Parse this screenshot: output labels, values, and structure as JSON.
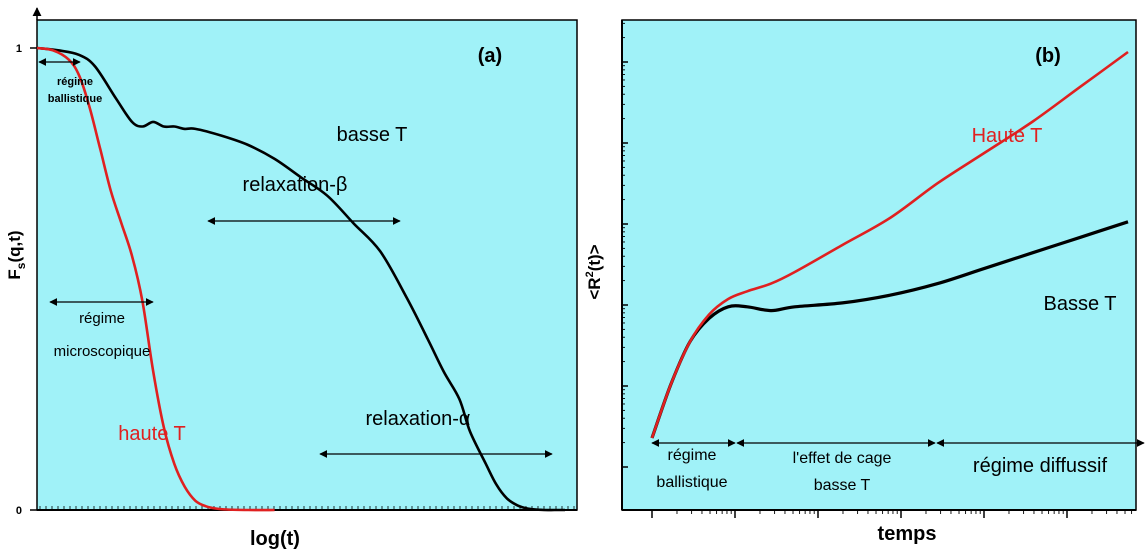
{
  "colors": {
    "panel_bg": "#a0f2f8",
    "low_T": "#000000",
    "high_T": "#e02020",
    "frame": "#000000"
  },
  "chart_data": [
    {
      "type": "line",
      "panel_label": "(a)",
      "xlabel": "log(t)",
      "ylabel": "F",
      "ylabel_sub": "s",
      "ylabel_tail": "(q,t)",
      "y_ticks": [
        "1",
        "0"
      ],
      "ylim": [
        0,
        1
      ],
      "grid": false,
      "series": [
        {
          "name": "basse T",
          "color": "#000000",
          "x": [
            0,
            0.04,
            0.08,
            0.11,
            0.15,
            0.18,
            0.2,
            0.22,
            0.24,
            0.26,
            0.28,
            0.3,
            0.35,
            0.4,
            0.45,
            0.5,
            0.55,
            0.6,
            0.65,
            0.7,
            0.74,
            0.77,
            0.8,
            0.82,
            0.85,
            0.87,
            0.89,
            0.91,
            0.93,
            0.96,
            0.98,
            1.0
          ],
          "y": [
            1,
            0.995,
            0.985,
            0.96,
            0.89,
            0.84,
            0.83,
            0.84,
            0.83,
            0.83,
            0.825,
            0.825,
            0.81,
            0.79,
            0.76,
            0.72,
            0.68,
            0.62,
            0.56,
            0.46,
            0.37,
            0.3,
            0.24,
            0.17,
            0.1,
            0.055,
            0.025,
            0.01,
            0.003,
            0,
            0,
            0
          ]
        },
        {
          "name": "haute T",
          "color": "#e02020",
          "x": [
            0,
            0.03,
            0.06,
            0.08,
            0.1,
            0.12,
            0.14,
            0.16,
            0.18,
            0.2,
            0.22,
            0.24,
            0.26,
            0.28,
            0.3,
            0.32,
            0.34,
            0.36,
            0.4,
            0.45
          ],
          "y": [
            1,
            0.995,
            0.975,
            0.94,
            0.87,
            0.78,
            0.69,
            0.62,
            0.55,
            0.45,
            0.3,
            0.18,
            0.1,
            0.05,
            0.02,
            0.008,
            0.003,
            0.001,
            0,
            0
          ]
        }
      ],
      "annotations": [
        {
          "text": "régime",
          "id": "bal1"
        },
        {
          "text": "ballistique",
          "id": "bal2"
        },
        {
          "text": "régime",
          "id": "mic1"
        },
        {
          "text": "microscopique",
          "id": "mic2"
        },
        {
          "text": "basse T",
          "id": "lowT"
        },
        {
          "text": "relaxation-β",
          "id": "beta"
        },
        {
          "text": "haute T",
          "id": "highT"
        },
        {
          "text": "relaxation-α",
          "id": "alpha"
        }
      ]
    },
    {
      "type": "line",
      "panel_label": "(b)",
      "xlabel": "temps",
      "ylabel": "<R",
      "ylabel_sup": "2",
      "ylabel_tail": "(t)>",
      "grid": false,
      "xscale": "log",
      "yscale": "log",
      "series": [
        {
          "name": "Haute T",
          "color": "#e02020",
          "x": [
            0,
            0.04,
            0.08,
            0.12,
            0.16,
            0.2,
            0.25,
            0.3,
            0.4,
            0.5,
            0.6,
            0.7,
            0.8,
            0.9,
            1.0
          ],
          "y": [
            0,
            0.14,
            0.25,
            0.32,
            0.36,
            0.38,
            0.4,
            0.43,
            0.5,
            0.57,
            0.66,
            0.74,
            0.82,
            0.91,
            1.0
          ]
        },
        {
          "name": "Basse T",
          "color": "#000000",
          "x": [
            0,
            0.04,
            0.08,
            0.12,
            0.16,
            0.2,
            0.25,
            0.3,
            0.4,
            0.5,
            0.6,
            0.7,
            0.8,
            0.9,
            1.0
          ],
          "y": [
            0,
            0.14,
            0.25,
            0.31,
            0.34,
            0.34,
            0.33,
            0.34,
            0.35,
            0.37,
            0.4,
            0.44,
            0.48,
            0.52,
            0.56
          ]
        }
      ],
      "annotations": [
        {
          "text": "régime",
          "id": "b_bal1"
        },
        {
          "text": "ballistique",
          "id": "b_bal2"
        },
        {
          "text": "l'effet de cage",
          "id": "cage1"
        },
        {
          "text": "basse T",
          "id": "cage2"
        },
        {
          "text": "régime diffussif",
          "id": "diff"
        }
      ]
    }
  ]
}
